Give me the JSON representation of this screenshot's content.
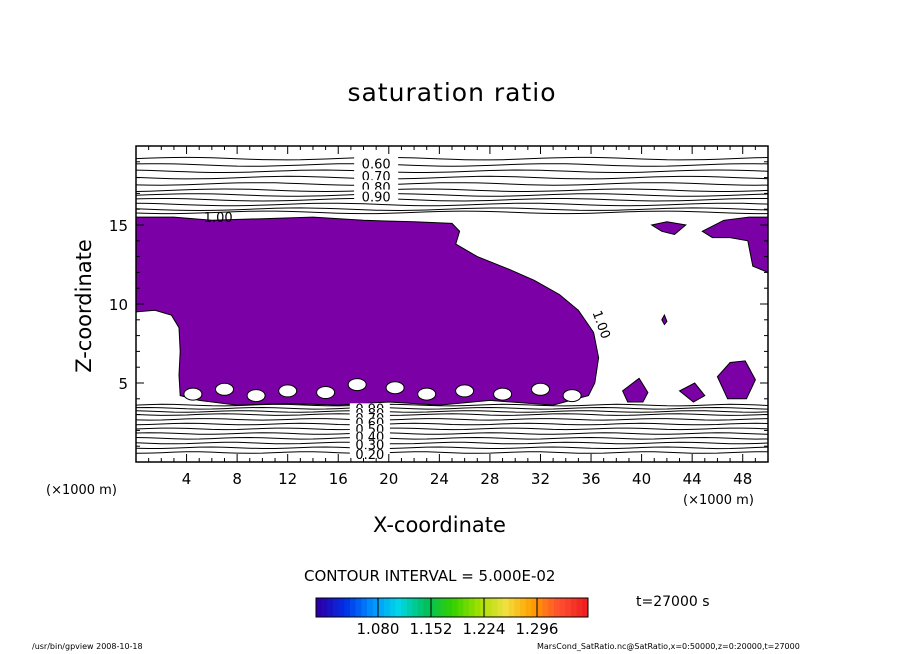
{
  "chart_data": {
    "type": "heatmap",
    "title": "saturation ratio",
    "xlabel": "X-coordinate",
    "ylabel": "Z-coordinate",
    "x_unit_label": "(×1000 m)",
    "xlim": [
      0,
      50
    ],
    "ylim": [
      0,
      20
    ],
    "x_ticks": [
      4,
      8,
      12,
      16,
      20,
      24,
      28,
      32,
      36,
      40,
      44,
      48
    ],
    "y_ticks": [
      5,
      10,
      15
    ],
    "contour_labels_upper": [
      "0.60",
      "0.70",
      "0.80",
      "0.90",
      "1.00"
    ],
    "contour_labels_lower": [
      "0.90",
      "0.80",
      "0.70",
      "0.60",
      "0.50",
      "0.40",
      "0.30",
      "0.20"
    ],
    "contour_label_right": "1.00",
    "fill_color": "#7b00a5",
    "contour_interval_text": "CONTOUR INTERVAL = 5.000E-02",
    "colorbar_ticks": [
      "1.080",
      "1.152",
      "1.224",
      "1.296"
    ],
    "colorbar_colors": [
      "#2a00a8",
      "#0030e8",
      "#0090ff",
      "#00d8e8",
      "#00c060",
      "#30d000",
      "#a0e000",
      "#f0e040",
      "#ffa000",
      "#ff5030",
      "#f02020"
    ],
    "time_label": "t=27000 s"
  },
  "footer": {
    "left": "/usr/bin/gpview   2008-10-18",
    "right": "MarsCond_SatRatio.nc@SatRatio,x=0:50000,z=0:20000,t=27000"
  }
}
